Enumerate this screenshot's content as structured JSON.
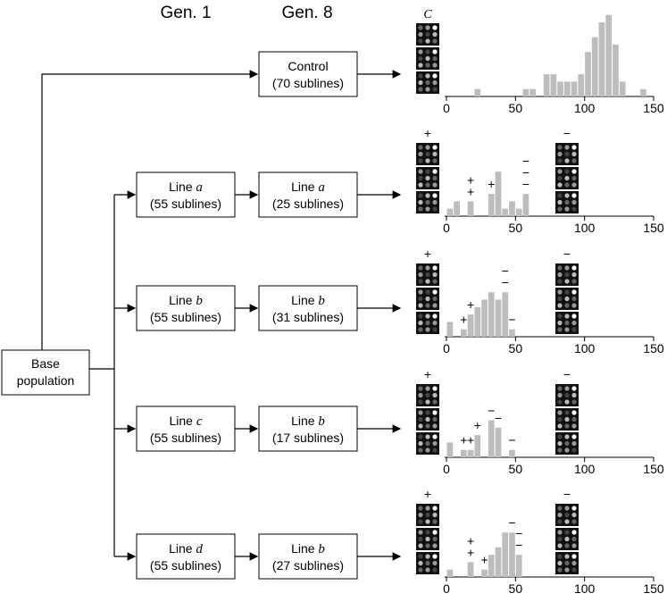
{
  "header": {
    "gen1": "Gen. 1",
    "gen8": "Gen. 8"
  },
  "base": {
    "line1": "Base",
    "line2": "population"
  },
  "nodes": [
    {
      "label": "Control",
      "count": "(70 sublines)"
    },
    {
      "prefix": "Line",
      "letter": "a",
      "count": "(55 sublines)"
    },
    {
      "prefix": "Line",
      "letter": "a",
      "count": "(25 sublines)"
    },
    {
      "prefix": "Line",
      "letter": "b",
      "count": "(55 sublines)"
    },
    {
      "prefix": "Line",
      "letter": "b",
      "count": "(31 sublines)"
    },
    {
      "prefix": "Line",
      "letter": "c",
      "count": "(55 sublines)"
    },
    {
      "prefix": "Line",
      "letter": "b",
      "count": "(17 sublines)"
    },
    {
      "prefix": "Line",
      "letter": "d",
      "count": "(55 sublines)"
    },
    {
      "prefix": "Line",
      "letter": "b",
      "count": "(27 sublines)"
    }
  ],
  "chart_data": [
    {
      "type": "histogram",
      "left_label": "C",
      "color": "#bdbdbd",
      "bins": [
        20,
        25,
        30,
        35,
        40,
        45,
        50,
        55,
        60,
        65,
        70,
        75,
        80,
        85,
        90,
        95,
        100,
        105,
        110,
        115,
        120,
        125,
        130,
        135,
        140,
        145
      ],
      "counts": [
        1,
        0,
        0,
        0,
        0,
        0,
        0,
        1,
        1,
        0,
        3,
        3,
        2,
        2,
        2,
        3,
        6,
        8,
        10,
        11,
        7,
        2,
        0,
        0,
        1
      ],
      "xlim": [
        0,
        150
      ],
      "xticks": [
        0,
        50,
        100,
        150
      ]
    },
    {
      "type": "histogram",
      "left_label": "+",
      "right_label": "−",
      "color": "#bdbdbd",
      "bins": [
        0,
        5,
        10,
        15,
        20,
        25,
        30,
        35,
        40,
        45,
        50,
        55,
        60
      ],
      "counts": [
        1,
        2,
        0,
        2,
        0,
        0,
        3,
        6,
        1,
        2,
        1,
        3
      ],
      "marks": [
        null,
        null,
        null,
        [
          "+",
          "+"
        ],
        null,
        null,
        [
          "+"
        ],
        null,
        null,
        null,
        null,
        [
          "−",
          "−",
          "−"
        ]
      ],
      "xlim": [
        0,
        150
      ],
      "xticks": [
        0,
        50,
        100,
        150
      ]
    },
    {
      "type": "histogram",
      "left_label": "+",
      "right_label": "−",
      "color": "#bdbdbd",
      "bins": [
        0,
        5,
        10,
        15,
        20,
        25,
        30,
        35,
        40,
        45,
        50,
        55,
        60
      ],
      "counts": [
        2,
        0,
        1,
        3,
        4,
        5,
        6,
        5,
        6,
        1,
        0,
        0
      ],
      "marks": [
        null,
        null,
        [
          "+"
        ],
        [
          "+"
        ],
        null,
        null,
        null,
        null,
        [
          "−",
          "−"
        ],
        [
          "−"
        ],
        null,
        null
      ],
      "xlim": [
        0,
        150
      ],
      "xticks": [
        0,
        50,
        100,
        150
      ]
    },
    {
      "type": "histogram",
      "left_label": "+",
      "right_label": "−",
      "color": "#bdbdbd",
      "bins": [
        0,
        5,
        10,
        15,
        20,
        25,
        30,
        35,
        40,
        45,
        50,
        55,
        60
      ],
      "counts": [
        2,
        0,
        1,
        1,
        3,
        0,
        5,
        4,
        0,
        1,
        0,
        0
      ],
      "marks": [
        null,
        null,
        [
          "+"
        ],
        [
          "+"
        ],
        [
          "+"
        ],
        null,
        [
          "−"
        ],
        [
          "−"
        ],
        null,
        [
          "−"
        ],
        null,
        null
      ],
      "xlim": [
        0,
        150
      ],
      "xticks": [
        0,
        50,
        100,
        150
      ]
    },
    {
      "type": "histogram",
      "left_label": "+",
      "right_label": "−",
      "color": "#bdbdbd",
      "bins": [
        0,
        5,
        10,
        15,
        20,
        25,
        30,
        35,
        40,
        45,
        50,
        55,
        60
      ],
      "counts": [
        1,
        0,
        0,
        2,
        0,
        1,
        3,
        4,
        6,
        6,
        3,
        0
      ],
      "marks": [
        null,
        null,
        null,
        [
          "+",
          "+"
        ],
        null,
        [
          "+"
        ],
        null,
        null,
        null,
        [
          "−"
        ],
        [
          "−",
          "−"
        ],
        null
      ],
      "xlim": [
        0,
        150
      ],
      "xticks": [
        0,
        50,
        100,
        150
      ]
    }
  ]
}
